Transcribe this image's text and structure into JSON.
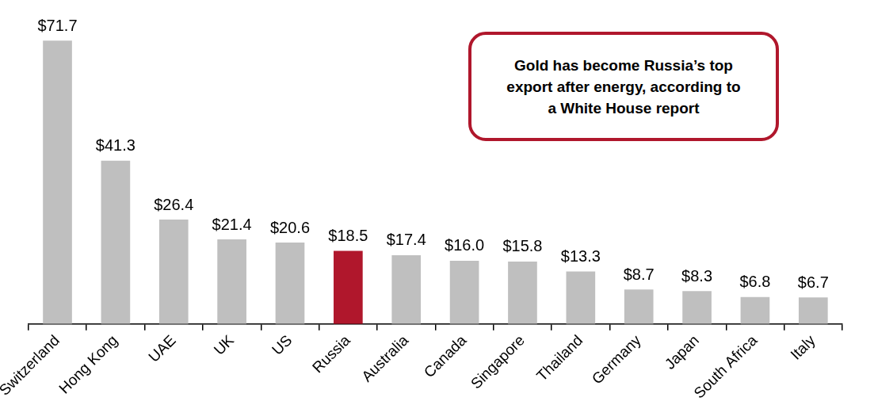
{
  "chart_data": {
    "type": "bar",
    "annotation": "Gold has become Russia’s top export after energy, according to a White House report",
    "categories": [
      "Switzerland",
      "Hong Kong",
      "UAE",
      "UK",
      "US",
      "Russia",
      "Australia",
      "Canada",
      "Singapore",
      "Thailand",
      "Germany",
      "Japan",
      "South Africa",
      "Italy"
    ],
    "values": [
      71.7,
      41.3,
      26.4,
      21.4,
      20.6,
      18.5,
      17.4,
      16.0,
      15.8,
      13.3,
      8.7,
      8.3,
      6.8,
      6.7
    ],
    "value_labels": [
      "$71.7",
      "$41.3",
      "$26.4",
      "$21.4",
      "$20.6",
      "$18.5",
      "$17.4",
      "$16.0",
      "$15.8",
      "$13.3",
      "$8.7",
      "$8.3",
      "$6.8",
      "$6.7"
    ],
    "colors": [
      "#bfbfbf",
      "#bfbfbf",
      "#bfbfbf",
      "#bfbfbf",
      "#bfbfbf",
      "#b0172c",
      "#bfbfbf",
      "#bfbfbf",
      "#bfbfbf",
      "#bfbfbf",
      "#bfbfbf",
      "#bfbfbf",
      "#bfbfbf",
      "#bfbfbf"
    ],
    "ylim": [
      0,
      80
    ],
    "data_labels": true,
    "tick_labels": "x",
    "grid": false
  }
}
